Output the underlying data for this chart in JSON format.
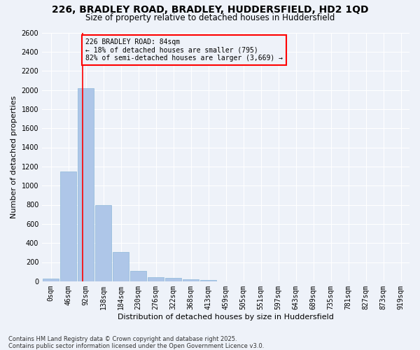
{
  "title1": "226, BRADLEY ROAD, BRADLEY, HUDDERSFIELD, HD2 1QD",
  "title2": "Size of property relative to detached houses in Huddersfield",
  "xlabel": "Distribution of detached houses by size in Huddersfield",
  "ylabel": "Number of detached properties",
  "footer1": "Contains HM Land Registry data © Crown copyright and database right 2025.",
  "footer2": "Contains public sector information licensed under the Open Government Licence v3.0.",
  "categories": [
    "0sqm",
    "46sqm",
    "92sqm",
    "138sqm",
    "184sqm",
    "230sqm",
    "276sqm",
    "322sqm",
    "368sqm",
    "413sqm",
    "459sqm",
    "505sqm",
    "551sqm",
    "597sqm",
    "643sqm",
    "689sqm",
    "735sqm",
    "781sqm",
    "827sqm",
    "873sqm",
    "919sqm"
  ],
  "values": [
    30,
    1150,
    2020,
    795,
    305,
    105,
    45,
    35,
    20,
    10,
    0,
    0,
    0,
    0,
    0,
    0,
    0,
    0,
    0,
    0,
    0
  ],
  "bar_color": "#aec6e8",
  "bar_edge_color": "#8db8d8",
  "ylim": [
    0,
    2600
  ],
  "yticks": [
    0,
    200,
    400,
    600,
    800,
    1000,
    1200,
    1400,
    1600,
    1800,
    2000,
    2200,
    2400,
    2600
  ],
  "vline_color": "red",
  "annotation_title": "226 BRADLEY ROAD: 84sqm",
  "annotation_line1": "← 18% of detached houses are smaller (795)",
  "annotation_line2": "82% of semi-detached houses are larger (3,669) →",
  "annotation_box_color": "red",
  "background_color": "#eef2f9",
  "grid_color": "#ffffff",
  "title1_fontsize": 10,
  "title2_fontsize": 8.5,
  "axis_label_fontsize": 8,
  "tick_fontsize": 7,
  "footer_fontsize": 6
}
